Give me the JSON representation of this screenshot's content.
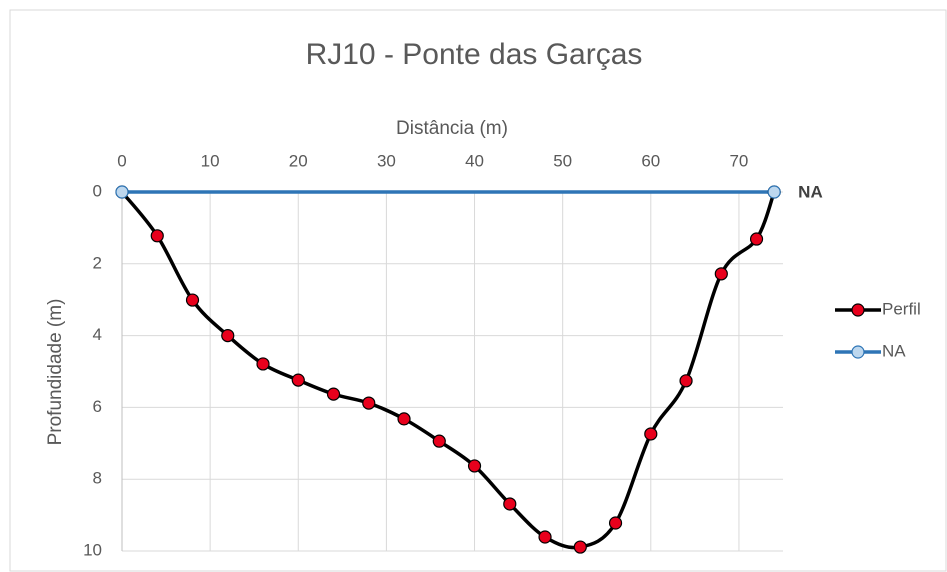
{
  "chart_data": {
    "type": "line",
    "title": "RJ10 - Ponte das Garças",
    "x_label": "Distância (m)",
    "y_label": "Profundidade (m)",
    "series": [
      {
        "name": "Perfil",
        "color": "#000000",
        "marker_color": "#e8001c",
        "x": [
          0,
          4,
          8,
          12,
          16,
          20,
          24,
          28,
          32,
          36,
          40,
          44,
          48,
          52,
          56,
          60,
          64,
          68,
          72,
          74
        ],
        "values": [
          0,
          1.22,
          3.01,
          4.0,
          4.79,
          5.24,
          5.63,
          5.88,
          6.32,
          6.94,
          7.63,
          8.69,
          9.61,
          9.89,
          9.22,
          6.74,
          5.26,
          2.28,
          1.31,
          0
        ]
      },
      {
        "name": "NA",
        "color": "#2e75b6",
        "marker_color": "#bdd7ee",
        "x": [
          0,
          74
        ],
        "values": [
          0,
          0
        ]
      }
    ],
    "annotation": "NA",
    "xlim": [
      0,
      75
    ],
    "xticks": [
      0,
      10,
      20,
      30,
      40,
      50,
      60,
      70
    ],
    "ylim": [
      0,
      10
    ],
    "yticks": [
      0,
      2,
      4,
      6,
      8,
      10
    ],
    "y_inverted": true,
    "x_axis_top": true,
    "grid": true,
    "legend": "right"
  }
}
